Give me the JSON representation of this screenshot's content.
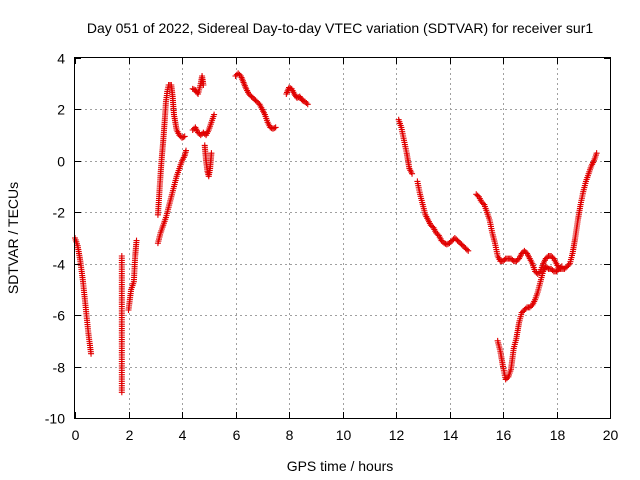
{
  "chart_data": {
    "type": "scatter",
    "title": "Day 051 of 2022, Sidereal Day-to-day VTEC variation (SDTVAR) for receiver sur1",
    "xlabel": "GPS time / hours",
    "ylabel": "SDTVAR / TECUs",
    "xlim": [
      0,
      20
    ],
    "ylim": [
      -10,
      4
    ],
    "xticks": [
      "0",
      "2",
      "4",
      "6",
      "8",
      "10",
      "12",
      "14",
      "16",
      "18",
      "20"
    ],
    "yticks": [
      "-10",
      "-8",
      "-6",
      "-4",
      "-2",
      "0",
      "2",
      "4"
    ],
    "grid": true,
    "marker": "+",
    "color": "#e00000",
    "series": [
      {
        "name": "sur1",
        "segments": [
          [
            [
              0.0,
              -3.0
            ],
            [
              0.1,
              -3.3
            ],
            [
              0.2,
              -3.9
            ],
            [
              0.3,
              -4.7
            ],
            [
              0.4,
              -5.7
            ],
            [
              0.5,
              -6.7
            ],
            [
              0.6,
              -7.5
            ]
          ],
          [
            [
              1.75,
              -3.7
            ],
            [
              1.75,
              -9.0
            ]
          ],
          [
            [
              2.0,
              -5.8
            ],
            [
              2.1,
              -5.0
            ],
            [
              2.2,
              -4.7
            ],
            [
              2.25,
              -3.7
            ],
            [
              2.3,
              -3.1
            ]
          ],
          [
            [
              3.1,
              -3.2
            ],
            [
              3.2,
              -2.8
            ],
            [
              3.3,
              -2.5
            ],
            [
              3.4,
              -2.2
            ],
            [
              3.5,
              -1.8
            ],
            [
              3.6,
              -1.4
            ],
            [
              3.7,
              -1.0
            ],
            [
              3.8,
              -0.6
            ],
            [
              3.9,
              -0.3
            ],
            [
              4.0,
              0.0
            ],
            [
              4.1,
              0.2
            ],
            [
              4.15,
              0.4
            ]
          ],
          [
            [
              3.1,
              -2.1
            ],
            [
              3.15,
              -1.3
            ],
            [
              3.2,
              -0.5
            ],
            [
              3.25,
              0.2
            ],
            [
              3.3,
              0.8
            ],
            [
              3.35,
              1.5
            ],
            [
              3.4,
              2.3
            ],
            [
              3.45,
              2.7
            ],
            [
              3.5,
              2.95
            ],
            [
              3.6,
              2.95
            ],
            [
              3.65,
              2.5
            ],
            [
              3.7,
              1.8
            ],
            [
              3.8,
              1.2
            ],
            [
              3.9,
              1.0
            ],
            [
              4.0,
              0.9
            ],
            [
              4.1,
              0.95
            ]
          ],
          [
            [
              4.4,
              2.8
            ],
            [
              4.5,
              2.75
            ],
            [
              4.6,
              2.6
            ],
            [
              4.7,
              3.0
            ],
            [
              4.75,
              3.3
            ],
            [
              4.8,
              2.95
            ]
          ],
          [
            [
              4.4,
              1.2
            ],
            [
              4.5,
              1.3
            ],
            [
              4.6,
              1.1
            ],
            [
              4.7,
              1.0
            ],
            [
              4.8,
              1.1
            ],
            [
              4.9,
              1.0
            ],
            [
              5.0,
              1.2
            ],
            [
              5.1,
              1.5
            ],
            [
              5.2,
              1.8
            ]
          ],
          [
            [
              4.85,
              0.6
            ],
            [
              4.9,
              0.0
            ],
            [
              4.95,
              -0.4
            ],
            [
              5.0,
              -0.6
            ],
            [
              5.05,
              -0.3
            ],
            [
              5.1,
              0.3
            ]
          ],
          [
            [
              6.0,
              3.3
            ],
            [
              6.1,
              3.4
            ],
            [
              6.2,
              3.3
            ],
            [
              6.3,
              3.05
            ],
            [
              6.4,
              2.8
            ],
            [
              6.5,
              2.6
            ],
            [
              6.6,
              2.5
            ],
            [
              6.7,
              2.4
            ],
            [
              6.8,
              2.3
            ],
            [
              6.9,
              2.2
            ],
            [
              7.0,
              2.0
            ],
            [
              7.1,
              1.8
            ],
            [
              7.2,
              1.5
            ],
            [
              7.3,
              1.3
            ],
            [
              7.4,
              1.25
            ],
            [
              7.5,
              1.3
            ]
          ],
          [
            [
              7.9,
              2.6
            ],
            [
              8.0,
              2.85
            ],
            [
              8.1,
              2.8
            ],
            [
              8.2,
              2.6
            ],
            [
              8.3,
              2.45
            ],
            [
              8.4,
              2.5
            ],
            [
              8.5,
              2.35
            ],
            [
              8.6,
              2.3
            ],
            [
              8.7,
              2.2
            ]
          ],
          [
            [
              12.1,
              1.6
            ],
            [
              12.2,
              1.3
            ],
            [
              12.3,
              0.8
            ],
            [
              12.4,
              0.3
            ],
            [
              12.5,
              -0.3
            ],
            [
              12.6,
              -0.5
            ]
          ],
          [
            [
              12.8,
              -0.8
            ],
            [
              12.9,
              -1.3
            ],
            [
              13.0,
              -1.7
            ],
            [
              13.1,
              -2.1
            ],
            [
              13.2,
              -2.3
            ],
            [
              13.3,
              -2.5
            ],
            [
              13.4,
              -2.6
            ],
            [
              13.5,
              -2.8
            ],
            [
              13.6,
              -2.9
            ],
            [
              13.7,
              -3.1
            ],
            [
              13.8,
              -3.2
            ],
            [
              13.9,
              -3.25
            ],
            [
              14.0,
              -3.2
            ],
            [
              14.1,
              -3.1
            ],
            [
              14.2,
              -3.0
            ],
            [
              14.3,
              -3.1
            ],
            [
              14.4,
              -3.2
            ],
            [
              14.5,
              -3.3
            ],
            [
              14.6,
              -3.4
            ],
            [
              14.7,
              -3.5
            ]
          ],
          [
            [
              15.0,
              -1.3
            ],
            [
              15.1,
              -1.4
            ],
            [
              15.2,
              -1.6
            ],
            [
              15.3,
              -1.7
            ],
            [
              15.4,
              -2.0
            ],
            [
              15.5,
              -2.3
            ],
            [
              15.6,
              -2.8
            ],
            [
              15.7,
              -3.2
            ],
            [
              15.8,
              -3.7
            ],
            [
              15.9,
              -3.9
            ],
            [
              16.0,
              -3.9
            ],
            [
              16.1,
              -3.8
            ],
            [
              16.2,
              -3.8
            ],
            [
              16.3,
              -3.8
            ],
            [
              16.4,
              -3.9
            ],
            [
              16.5,
              -3.9
            ],
            [
              16.6,
              -3.8
            ],
            [
              16.7,
              -3.6
            ],
            [
              16.8,
              -3.5
            ],
            [
              16.9,
              -3.6
            ],
            [
              17.0,
              -3.8
            ],
            [
              17.1,
              -4.0
            ],
            [
              17.2,
              -4.3
            ],
            [
              17.3,
              -4.4
            ],
            [
              17.4,
              -4.3
            ],
            [
              17.5,
              -4.0
            ],
            [
              17.6,
              -3.8
            ],
            [
              17.7,
              -3.7
            ],
            [
              17.8,
              -3.7
            ],
            [
              17.9,
              -3.8
            ],
            [
              18.0,
              -4.0
            ],
            [
              18.1,
              -4.2
            ],
            [
              18.2,
              -4.2
            ],
            [
              18.3,
              -4.2
            ],
            [
              18.4,
              -4.1
            ],
            [
              18.5,
              -4.0
            ],
            [
              18.6,
              -3.6
            ],
            [
              18.7,
              -3.0
            ],
            [
              18.8,
              -2.3
            ],
            [
              18.9,
              -1.7
            ],
            [
              19.0,
              -1.2
            ],
            [
              19.1,
              -0.8
            ],
            [
              19.2,
              -0.5
            ],
            [
              19.3,
              -0.2
            ],
            [
              19.4,
              0.0
            ],
            [
              19.5,
              0.3
            ]
          ],
          [
            [
              15.8,
              -7.0
            ],
            [
              15.9,
              -7.4
            ],
            [
              16.0,
              -8.0
            ],
            [
              16.1,
              -8.5
            ],
            [
              16.2,
              -8.4
            ],
            [
              16.3,
              -8.1
            ],
            [
              16.4,
              -7.3
            ],
            [
              16.5,
              -6.9
            ],
            [
              16.6,
              -6.3
            ],
            [
              16.7,
              -5.9
            ],
            [
              16.8,
              -5.8
            ],
            [
              16.9,
              -5.7
            ],
            [
              17.0,
              -5.7
            ],
            [
              17.1,
              -5.6
            ],
            [
              17.2,
              -5.4
            ],
            [
              17.3,
              -5.1
            ],
            [
              17.4,
              -4.7
            ],
            [
              17.5,
              -4.3
            ],
            [
              17.6,
              -4.1
            ],
            [
              17.7,
              -4.2
            ],
            [
              17.8,
              -4.2
            ],
            [
              17.9,
              -4.3
            ],
            [
              18.0,
              -4.3
            ],
            [
              18.1,
              -4.2
            ],
            [
              18.2,
              -4.1
            ]
          ]
        ]
      }
    ]
  }
}
